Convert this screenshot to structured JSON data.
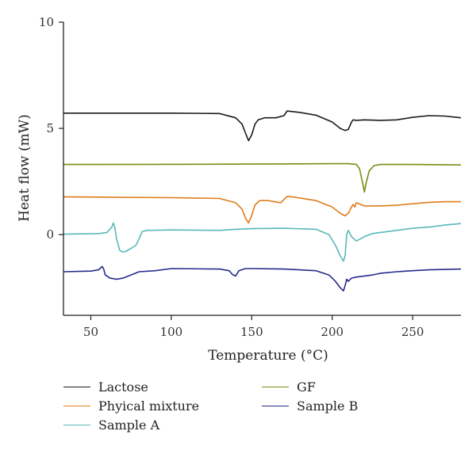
{
  "chart_data": {
    "type": "line",
    "title": "",
    "xlabel": "Temperature (°C)",
    "ylabel": "Heat flow (mW)",
    "xlim": [
      33,
      280
    ],
    "ylim": [
      -3.8,
      10
    ],
    "xticks": [
      50,
      100,
      150,
      200,
      250
    ],
    "yticks": [
      0,
      5,
      10
    ],
    "xtick_labels": [
      "50",
      "100",
      "150",
      "200",
      "250"
    ],
    "ytick_labels": [
      "0",
      "5",
      "10"
    ],
    "grid": false,
    "legend_position": "bottom",
    "series": [
      {
        "name": "Lactose",
        "color": "#1a1a1a",
        "x": [
          33,
          60,
          100,
          130,
          140,
          144,
          146,
          148,
          150,
          152,
          154,
          158,
          165,
          170,
          172,
          174,
          180,
          190,
          200,
          205,
          208,
          210,
          212,
          213,
          215,
          220,
          230,
          240,
          250,
          260,
          270,
          280
        ],
        "y": [
          5.72,
          5.72,
          5.72,
          5.7,
          5.5,
          5.2,
          4.8,
          4.42,
          4.7,
          5.2,
          5.4,
          5.5,
          5.5,
          5.6,
          5.82,
          5.8,
          5.75,
          5.62,
          5.3,
          5.0,
          4.9,
          4.95,
          5.3,
          5.4,
          5.38,
          5.4,
          5.38,
          5.4,
          5.52,
          5.6,
          5.58,
          5.5
        ]
      },
      {
        "name": "GF",
        "color": "#7f8a14",
        "x": [
          33,
          100,
          150,
          200,
          210,
          215,
          217,
          219,
          220,
          221,
          223,
          226,
          230,
          250,
          280
        ],
        "y": [
          3.3,
          3.31,
          3.32,
          3.34,
          3.34,
          3.3,
          3.1,
          2.4,
          2.0,
          2.4,
          3.0,
          3.25,
          3.3,
          3.3,
          3.28
        ]
      },
      {
        "name": "Phyical mixture",
        "color": "#e07b1a",
        "x": [
          33,
          60,
          100,
          130,
          140,
          144,
          146,
          148,
          150,
          152,
          155,
          160,
          168,
          172,
          175,
          180,
          190,
          200,
          205,
          208,
          210,
          212,
          213,
          214,
          215,
          220,
          230,
          240,
          250,
          260,
          270,
          280
        ],
        "y": [
          1.78,
          1.76,
          1.74,
          1.7,
          1.5,
          1.2,
          0.8,
          0.55,
          0.9,
          1.4,
          1.6,
          1.6,
          1.5,
          1.8,
          1.78,
          1.72,
          1.6,
          1.3,
          1.0,
          0.88,
          1.0,
          1.3,
          1.42,
          1.3,
          1.5,
          1.35,
          1.35,
          1.38,
          1.45,
          1.52,
          1.55,
          1.55
        ]
      },
      {
        "name": "Sample A",
        "color": "#5ab8b8",
        "x": [
          33,
          55,
          60,
          63,
          64,
          65,
          66,
          68,
          70,
          72,
          75,
          78,
          80,
          82,
          85,
          100,
          130,
          140,
          150,
          170,
          190,
          198,
          202,
          205,
          207,
          208,
          209,
          210,
          212,
          215,
          220,
          225,
          230,
          240,
          250,
          260,
          270,
          280
        ],
        "y": [
          0.02,
          0.05,
          0.1,
          0.35,
          0.55,
          0.3,
          -0.2,
          -0.75,
          -0.82,
          -0.78,
          -0.65,
          -0.5,
          -0.2,
          0.15,
          0.2,
          0.22,
          0.2,
          0.25,
          0.28,
          0.3,
          0.25,
          0.0,
          -0.5,
          -1.0,
          -1.25,
          -1.0,
          0.0,
          0.2,
          -0.1,
          -0.3,
          -0.1,
          0.05,
          0.1,
          0.2,
          0.3,
          0.35,
          0.45,
          0.52
        ]
      },
      {
        "name": "Sample B",
        "color": "#262a8c",
        "x": [
          33,
          50,
          55,
          57,
          58,
          59,
          62,
          66,
          70,
          80,
          90,
          100,
          130,
          136,
          138,
          140,
          142,
          146,
          150,
          170,
          190,
          198,
          202,
          205,
          207,
          208,
          209,
          210,
          212,
          215,
          220,
          225,
          230,
          240,
          250,
          260,
          270,
          280
        ],
        "y": [
          -1.75,
          -1.72,
          -1.65,
          -1.5,
          -1.62,
          -1.9,
          -2.05,
          -2.1,
          -2.05,
          -1.75,
          -1.7,
          -1.6,
          -1.62,
          -1.7,
          -1.88,
          -1.95,
          -1.7,
          -1.6,
          -1.6,
          -1.62,
          -1.7,
          -1.9,
          -2.2,
          -2.5,
          -2.65,
          -2.4,
          -2.1,
          -2.2,
          -2.05,
          -2.0,
          -1.95,
          -1.9,
          -1.82,
          -1.75,
          -1.7,
          -1.66,
          -1.64,
          -1.62
        ]
      }
    ]
  },
  "legend": [
    {
      "label": "Lactose",
      "color": "#1a1a1a"
    },
    {
      "label": "GF",
      "color": "#7f8a14"
    },
    {
      "label": "Phyical mixture",
      "color": "#e07b1a"
    },
    {
      "label": "Sample B",
      "color": "#262a8c"
    },
    {
      "label": "Sample A",
      "color": "#5ab8b8"
    }
  ]
}
